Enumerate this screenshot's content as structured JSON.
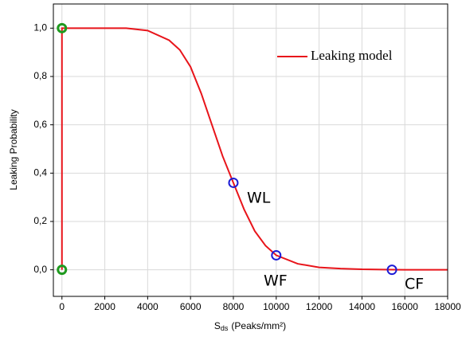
{
  "chart_data": {
    "type": "line",
    "y_label": "Leaking Probability",
    "x_label_parts": [
      "S",
      "ds",
      "(Peaks/mm²)"
    ],
    "xlim": [
      -400,
      18000
    ],
    "ylim": [
      -0.11,
      1.1
    ],
    "xticks": [
      0,
      2000,
      4000,
      6000,
      8000,
      10000,
      12000,
      14000,
      16000,
      18000
    ],
    "yticks": [
      {
        "value": 0,
        "label": "0,0"
      },
      {
        "value": 0.2,
        "label": "0,2"
      },
      {
        "value": 0.4,
        "label": "0,4"
      },
      {
        "value": 0.6,
        "label": "0,6"
      },
      {
        "value": 0.8,
        "label": "0,8"
      },
      {
        "value": 1.0,
        "label": "1,0"
      }
    ],
    "grid": true,
    "series": [
      {
        "name": "Leaking model",
        "color": "#e8141a",
        "x": [
          0,
          0,
          2000,
          3000,
          4000,
          5000,
          5500,
          6000,
          6500,
          7000,
          7500,
          8000,
          8500,
          9000,
          9500,
          10000,
          11000,
          12000,
          13000,
          14000,
          15000,
          16000,
          18000
        ],
        "values": [
          0,
          1.0,
          1.0,
          1.0,
          0.99,
          0.95,
          0.91,
          0.84,
          0.73,
          0.6,
          0.47,
          0.36,
          0.25,
          0.16,
          0.1,
          0.06,
          0.025,
          0.01,
          0.005,
          0.002,
          0.001,
          0,
          0
        ]
      }
    ],
    "markers": [
      {
        "color": "#1c1cd6",
        "x": [
          8000,
          10000,
          15400
        ],
        "values": [
          0.36,
          0.06,
          0
        ]
      },
      {
        "color": "#1f9a1f",
        "x": [
          0,
          0
        ],
        "values": [
          1.0,
          0
        ]
      }
    ],
    "annotations": [
      "WL",
      "WF",
      "CF"
    ]
  }
}
